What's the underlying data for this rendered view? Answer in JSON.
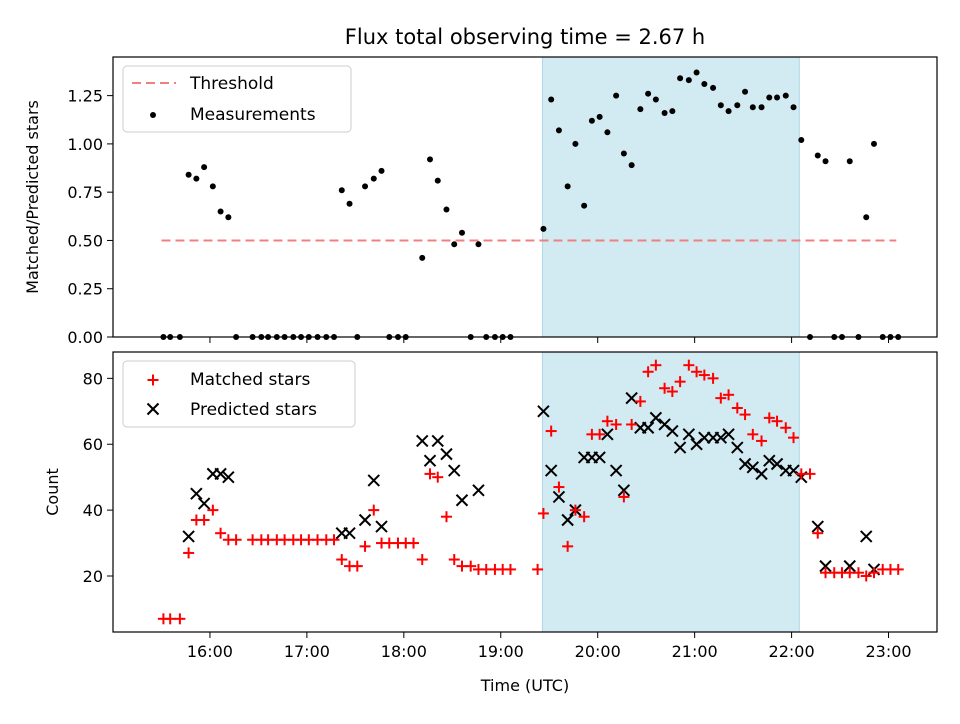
{
  "title": "Flux total observing time = 2.67 h",
  "colors": {
    "threshold": "#f08080",
    "measurement": "#000000",
    "matched": "#ff0000",
    "predicted": "#000000",
    "highlight": "#add8e6"
  },
  "chart_data": [
    {
      "type": "scatter",
      "ylabel": "Matched/Predicted stars",
      "xlabel": "",
      "xlim": [
        15.0,
        23.5
      ],
      "ylim": [
        0,
        1.45
      ],
      "yticks": [
        "0.00",
        "0.25",
        "0.50",
        "0.75",
        "1.00",
        "1.25"
      ],
      "ytick_values": [
        0,
        0.25,
        0.5,
        0.75,
        1.0,
        1.25
      ],
      "highlight_span": [
        19.43,
        22.08
      ],
      "legend": {
        "position": "top-left",
        "threshold_label": "Threshold",
        "measurement_label": "Measurements"
      },
      "threshold": {
        "value": 0.5,
        "x": [
          15.5,
          23.08
        ]
      },
      "measurements": [
        [
          15.52,
          0
        ],
        [
          15.59,
          0
        ],
        [
          15.69,
          0
        ],
        [
          15.78,
          0.84
        ],
        [
          15.86,
          0.82
        ],
        [
          15.94,
          0.88
        ],
        [
          16.03,
          0.78
        ],
        [
          16.11,
          0.65
        ],
        [
          16.19,
          0.62
        ],
        [
          16.27,
          0
        ],
        [
          16.44,
          0
        ],
        [
          16.53,
          0
        ],
        [
          16.6,
          0
        ],
        [
          16.69,
          0
        ],
        [
          16.77,
          0
        ],
        [
          16.86,
          0
        ],
        [
          16.94,
          0
        ],
        [
          17.02,
          0
        ],
        [
          17.11,
          0
        ],
        [
          17.2,
          0
        ],
        [
          17.28,
          0
        ],
        [
          17.36,
          0.76
        ],
        [
          17.44,
          0.69
        ],
        [
          17.52,
          0
        ],
        [
          17.6,
          0.78
        ],
        [
          17.69,
          0.82
        ],
        [
          17.77,
          0.86
        ],
        [
          17.85,
          0
        ],
        [
          17.94,
          0
        ],
        [
          18.02,
          0
        ],
        [
          18.19,
          0.41
        ],
        [
          18.27,
          0.92
        ],
        [
          18.35,
          0.81
        ],
        [
          18.44,
          0.66
        ],
        [
          18.52,
          0.48
        ],
        [
          18.6,
          0.54
        ],
        [
          18.69,
          0
        ],
        [
          18.77,
          0.48
        ],
        [
          18.85,
          0
        ],
        [
          18.94,
          0
        ],
        [
          19.02,
          0
        ],
        [
          19.1,
          0
        ],
        [
          19.44,
          0.56
        ],
        [
          19.52,
          1.23
        ],
        [
          19.6,
          1.07
        ],
        [
          19.69,
          0.78
        ],
        [
          19.77,
          1.0
        ],
        [
          19.86,
          0.68
        ],
        [
          19.94,
          1.12
        ],
        [
          20.02,
          1.14
        ],
        [
          20.1,
          1.06
        ],
        [
          20.19,
          1.25
        ],
        [
          20.27,
          0.95
        ],
        [
          20.35,
          0.89
        ],
        [
          20.44,
          1.18
        ],
        [
          20.52,
          1.26
        ],
        [
          20.6,
          1.23
        ],
        [
          20.69,
          1.16
        ],
        [
          20.77,
          1.17
        ],
        [
          20.85,
          1.34
        ],
        [
          20.94,
          1.33
        ],
        [
          21.02,
          1.37
        ],
        [
          21.1,
          1.31
        ],
        [
          21.19,
          1.29
        ],
        [
          21.27,
          1.2
        ],
        [
          21.35,
          1.17
        ],
        [
          21.44,
          1.2
        ],
        [
          21.52,
          1.27
        ],
        [
          21.6,
          1.19
        ],
        [
          21.69,
          1.19
        ],
        [
          21.77,
          1.24
        ],
        [
          21.85,
          1.24
        ],
        [
          21.94,
          1.25
        ],
        [
          22.02,
          1.19
        ],
        [
          22.1,
          1.02
        ],
        [
          22.19,
          0
        ],
        [
          22.27,
          0.94
        ],
        [
          22.35,
          0.91
        ],
        [
          22.44,
          0
        ],
        [
          22.52,
          0
        ],
        [
          22.6,
          0.91
        ],
        [
          22.69,
          0
        ],
        [
          22.77,
          0.62
        ],
        [
          22.85,
          1.0
        ],
        [
          22.94,
          0
        ],
        [
          23.02,
          0
        ],
        [
          23.1,
          0
        ]
      ]
    },
    {
      "type": "scatter",
      "ylabel": "Count",
      "xlabel": "Time (UTC)",
      "xlim": [
        15.0,
        23.5
      ],
      "ylim": [
        3,
        88
      ],
      "yticks": [
        "20",
        "40",
        "60",
        "80"
      ],
      "ytick_values": [
        20,
        40,
        60,
        80
      ],
      "xticks": [
        "16:00",
        "17:00",
        "18:00",
        "19:00",
        "20:00",
        "21:00",
        "22:00",
        "23:00"
      ],
      "xtick_values": [
        16,
        17,
        18,
        19,
        20,
        21,
        22,
        23
      ],
      "highlight_span": [
        19.43,
        22.08
      ],
      "legend": {
        "position": "top-left",
        "matched_label": "Matched stars",
        "predicted_label": "Predicted stars"
      },
      "matched": [
        [
          15.52,
          7
        ],
        [
          15.59,
          7
        ],
        [
          15.69,
          7
        ],
        [
          15.78,
          27
        ],
        [
          15.86,
          37
        ],
        [
          15.94,
          37
        ],
        [
          16.03,
          40
        ],
        [
          16.11,
          33
        ],
        [
          16.19,
          31
        ],
        [
          16.27,
          31
        ],
        [
          16.44,
          31
        ],
        [
          16.53,
          31
        ],
        [
          16.6,
          31
        ],
        [
          16.69,
          31
        ],
        [
          16.77,
          31
        ],
        [
          16.86,
          31
        ],
        [
          16.94,
          31
        ],
        [
          17.02,
          31
        ],
        [
          17.11,
          31
        ],
        [
          17.2,
          31
        ],
        [
          17.28,
          31
        ],
        [
          17.36,
          25
        ],
        [
          17.44,
          23
        ],
        [
          17.52,
          23
        ],
        [
          17.6,
          29
        ],
        [
          17.69,
          40
        ],
        [
          17.77,
          30
        ],
        [
          17.85,
          30
        ],
        [
          17.94,
          30
        ],
        [
          18.02,
          30
        ],
        [
          18.1,
          30
        ],
        [
          18.19,
          25
        ],
        [
          18.27,
          51
        ],
        [
          18.35,
          50
        ],
        [
          18.44,
          38
        ],
        [
          18.52,
          25
        ],
        [
          18.6,
          23
        ],
        [
          18.69,
          23
        ],
        [
          18.77,
          22
        ],
        [
          18.85,
          22
        ],
        [
          18.94,
          22
        ],
        [
          19.02,
          22
        ],
        [
          19.1,
          22
        ],
        [
          19.38,
          22
        ],
        [
          19.44,
          39
        ],
        [
          19.52,
          64
        ],
        [
          19.6,
          47
        ],
        [
          19.69,
          29
        ],
        [
          19.77,
          40
        ],
        [
          19.86,
          38
        ],
        [
          19.94,
          63
        ],
        [
          20.02,
          63
        ],
        [
          20.1,
          67
        ],
        [
          20.19,
          66
        ],
        [
          20.27,
          44
        ],
        [
          20.35,
          66
        ],
        [
          20.44,
          73
        ],
        [
          20.52,
          82
        ],
        [
          20.6,
          84
        ],
        [
          20.69,
          77
        ],
        [
          20.77,
          76
        ],
        [
          20.85,
          79
        ],
        [
          20.94,
          84
        ],
        [
          21.02,
          82
        ],
        [
          21.1,
          81
        ],
        [
          21.19,
          80
        ],
        [
          21.27,
          74
        ],
        [
          21.35,
          75
        ],
        [
          21.44,
          71
        ],
        [
          21.52,
          69
        ],
        [
          21.6,
          63
        ],
        [
          21.69,
          61
        ],
        [
          21.77,
          68
        ],
        [
          21.85,
          67
        ],
        [
          21.94,
          65
        ],
        [
          22.02,
          62
        ],
        [
          22.1,
          51
        ],
        [
          22.19,
          51
        ],
        [
          22.27,
          33
        ],
        [
          22.35,
          21
        ],
        [
          22.44,
          21
        ],
        [
          22.52,
          21
        ],
        [
          22.6,
          21
        ],
        [
          22.69,
          21
        ],
        [
          22.77,
          20
        ],
        [
          22.85,
          21
        ],
        [
          22.94,
          22
        ],
        [
          23.02,
          22
        ],
        [
          23.1,
          22
        ]
      ],
      "predicted": [
        [
          15.78,
          32
        ],
        [
          15.86,
          45
        ],
        [
          15.94,
          42
        ],
        [
          16.03,
          51
        ],
        [
          16.11,
          51
        ],
        [
          16.19,
          50
        ],
        [
          17.36,
          33
        ],
        [
          17.44,
          33
        ],
        [
          17.6,
          37
        ],
        [
          17.69,
          49
        ],
        [
          17.77,
          35
        ],
        [
          18.19,
          61
        ],
        [
          18.27,
          55
        ],
        [
          18.35,
          61
        ],
        [
          18.44,
          57
        ],
        [
          18.52,
          52
        ],
        [
          18.6,
          43
        ],
        [
          18.77,
          46
        ],
        [
          19.44,
          70
        ],
        [
          19.52,
          52
        ],
        [
          19.6,
          44
        ],
        [
          19.69,
          37
        ],
        [
          19.77,
          40
        ],
        [
          19.86,
          56
        ],
        [
          19.94,
          56
        ],
        [
          20.02,
          56
        ],
        [
          20.1,
          63
        ],
        [
          20.19,
          52
        ],
        [
          20.27,
          46
        ],
        [
          20.35,
          74
        ],
        [
          20.44,
          65
        ],
        [
          20.52,
          65
        ],
        [
          20.6,
          68
        ],
        [
          20.69,
          66
        ],
        [
          20.77,
          64
        ],
        [
          20.85,
          59
        ],
        [
          20.94,
          63
        ],
        [
          21.02,
          60
        ],
        [
          21.1,
          62
        ],
        [
          21.19,
          62
        ],
        [
          21.27,
          62
        ],
        [
          21.35,
          63
        ],
        [
          21.44,
          59
        ],
        [
          21.52,
          54
        ],
        [
          21.6,
          53
        ],
        [
          21.69,
          51
        ],
        [
          21.77,
          55
        ],
        [
          21.85,
          54
        ],
        [
          21.94,
          52
        ],
        [
          22.02,
          52
        ],
        [
          22.1,
          50
        ],
        [
          22.27,
          35
        ],
        [
          22.35,
          23
        ],
        [
          22.6,
          23
        ],
        [
          22.77,
          32
        ],
        [
          22.85,
          22
        ]
      ]
    }
  ]
}
